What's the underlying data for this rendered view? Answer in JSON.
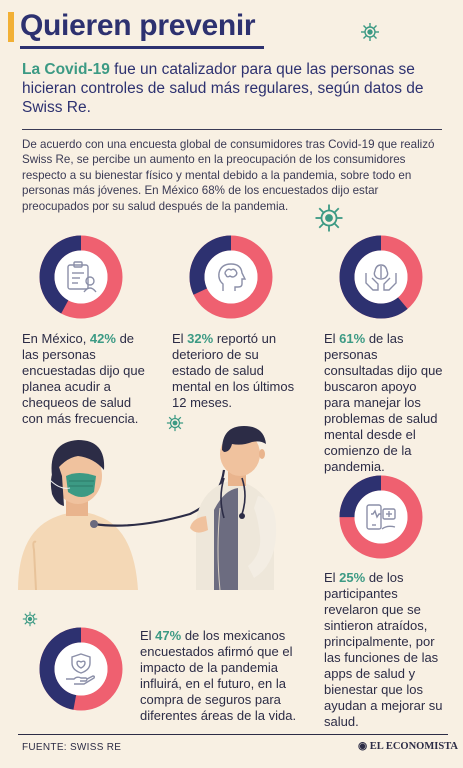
{
  "title": "Quieren prevenir",
  "lead": {
    "highlight": "La Covid-19",
    "rest": " fue un catalizador para que las personas se hicieran controles de salud más regulares, según datos de Swiss Re."
  },
  "intro": "De acuerdo con una encuesta global de consumidores tras Covid-19 que realizó Swiss Re, se percibe un aumento en la preocupación de los consumidores respecto a su bienestar físico y mental debido a la pandemia, sobre todo en personas más jóvenes. En México 68% de los encuestados dijo estar preocupados por su salud después de la pandemia.",
  "stats": [
    {
      "pre": "En México, ",
      "pct": "42%",
      "post": " de las personas encuestadas dijo que planea acudir a chequeos de salud con más frecuencia.",
      "value": 42,
      "icon": "medical-checkup-icon"
    },
    {
      "pre": "El ",
      "pct": "32%",
      "post": " reportó un deterioro de su estado de salud mental en los últimos 12 meses.",
      "value": 32,
      "icon": "head-mind-icon"
    },
    {
      "pre": "El ",
      "pct": "61%",
      "post": " de las personas consultadas dijo que buscaron apoyo para manejar los problemas de salud mental desde el comienzo de la pandemia.",
      "value": 61,
      "icon": "brain-hands-icon"
    },
    {
      "pre": "El ",
      "pct": "25%",
      "post": " de los participantes revelaron que se sintieron atraídos, principalmente, por las funciones de las apps de salud y bienestar que los ayudan a mejorar su salud.",
      "value": 25,
      "icon": "health-app-icon"
    },
    {
      "pre": "El ",
      "pct": "47%",
      "post": " de los mexicanos encuestados afirmó que el impacto de la pandemia influirá, en el futuro, en la compra de seguros para diferentes áreas de la vida.",
      "value": 47,
      "icon": "insurance-hand-icon"
    }
  ],
  "footer": {
    "source": "FUENTE: SWISS RE",
    "brand": "EL ECONOMISTA"
  },
  "colors": {
    "navy": "#2d3170",
    "coral": "#ef6070",
    "green": "#3c9a84",
    "accent": "#f2b035",
    "background": "#f8f0e3"
  }
}
